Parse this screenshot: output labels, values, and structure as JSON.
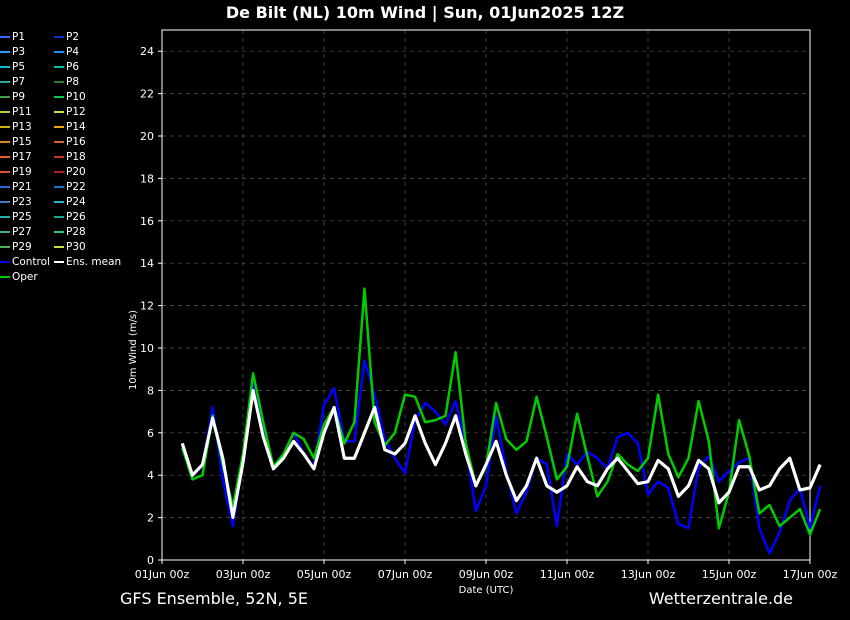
{
  "title": "De Bilt  (NL)  10m Wind | Sun, 01Jun2025 12Z",
  "footer": {
    "left": "GFS Ensemble, 52N, 5E",
    "right": "Wetterzentrale.de"
  },
  "colors": {
    "background": "#000000",
    "grid": "#555555",
    "ens_mean": "#ffffff",
    "control": "#0000ff",
    "oper": "#00cc00"
  },
  "chart_data": {
    "type": "line",
    "title": "De Bilt  (NL)  10m Wind | Sun, 01Jun2025 12Z",
    "xlabel": "Date (UTC)",
    "ylabel": "10m Wind (m/s)",
    "xlim": [
      "01Jun 00z",
      "17Jun 00z"
    ],
    "ylim": [
      0,
      25
    ],
    "grid": true,
    "legend_position": "left-outside",
    "x_ticks": [
      "01Jun 00z",
      "03Jun 00z",
      "05Jun 00z",
      "07Jun 00z",
      "09Jun 00z",
      "11Jun 00z",
      "13Jun 00z",
      "15Jun 00z",
      "17Jun 00z"
    ],
    "y_ticks": [
      0,
      2,
      4,
      6,
      8,
      10,
      12,
      14,
      16,
      18,
      20,
      22,
      24
    ],
    "x_start": "01Jun 12z",
    "x_step_hours": 6,
    "legend": [
      "P1",
      "P2",
      "P3",
      "P4",
      "P5",
      "P6",
      "P7",
      "P8",
      "P9",
      "P10",
      "P11",
      "P12",
      "P13",
      "P14",
      "P15",
      "P16",
      "P17",
      "P18",
      "P19",
      "P20",
      "P21",
      "P22",
      "P23",
      "P24",
      "P25",
      "P26",
      "P27",
      "P28",
      "P29",
      "P30",
      "Control",
      "Ens. mean",
      "Oper"
    ],
    "series": [
      {
        "name": "Ens. mean",
        "color": "#ffffff",
        "values": [
          5.5,
          4.0,
          4.5,
          6.7,
          4.8,
          2.0,
          4.6,
          8.0,
          5.8,
          4.3,
          4.8,
          5.6,
          5.0,
          4.3,
          6.0,
          7.2,
          4.8,
          4.8,
          6.0,
          7.2,
          5.2,
          5.0,
          5.5,
          6.8,
          5.5,
          4.5,
          5.5,
          6.8,
          5.0,
          3.5,
          4.5,
          5.6,
          4.0,
          2.8,
          3.5,
          4.8,
          3.5,
          3.2,
          3.5,
          4.4,
          3.7,
          3.5,
          4.3,
          4.8,
          4.2,
          3.6,
          3.7,
          4.7,
          4.3,
          3.0,
          3.5,
          4.7,
          4.3,
          2.7,
          3.2,
          4.4,
          4.4,
          3.3,
          3.5,
          4.3,
          4.8,
          3.3,
          3.4,
          4.5
        ]
      },
      {
        "name": "Control",
        "color": "#0000ff",
        "values": [
          5.2,
          4.0,
          4.4,
          7.2,
          3.8,
          1.6,
          4.8,
          8.4,
          6.1,
          4.4,
          5.0,
          6.0,
          5.0,
          4.4,
          7.3,
          8.1,
          5.6,
          5.6,
          9.4,
          7.8,
          5.7,
          4.8,
          4.1,
          6.6,
          7.4,
          7.0,
          6.4,
          7.5,
          5.4,
          2.3,
          3.5,
          6.8,
          4.2,
          2.2,
          3.2,
          4.8,
          4.5,
          1.6,
          5.0,
          4.5,
          5.1,
          4.8,
          4.3,
          5.8,
          6.0,
          5.5,
          3.1,
          3.7,
          3.4,
          1.7,
          1.5,
          4.4,
          4.9,
          3.7,
          4.2,
          4.6,
          4.8,
          1.5,
          0.3,
          1.3,
          2.8,
          3.4,
          1.5,
          3.5
        ]
      },
      {
        "name": "Oper",
        "color": "#00cc00",
        "values": [
          5.3,
          3.8,
          4.0,
          6.8,
          4.5,
          2.5,
          5.0,
          8.8,
          6.5,
          4.4,
          5.0,
          6.0,
          5.7,
          4.8,
          6.4,
          7.2,
          5.5,
          6.5,
          12.8,
          6.5,
          5.4,
          6.0,
          7.8,
          7.7,
          6.5,
          6.6,
          6.8,
          9.8,
          5.5,
          3.5,
          4.4,
          7.4,
          5.7,
          5.2,
          5.6,
          7.7,
          5.8,
          3.8,
          4.4,
          6.9,
          4.9,
          3.0,
          3.7,
          5.0,
          4.5,
          4.2,
          4.8,
          7.8,
          5.0,
          3.9,
          4.8,
          7.5,
          5.6,
          1.5,
          3.2,
          6.6,
          4.9,
          2.2,
          2.6,
          1.6,
          2.0,
          2.4,
          1.2,
          2.4
        ]
      }
    ]
  }
}
